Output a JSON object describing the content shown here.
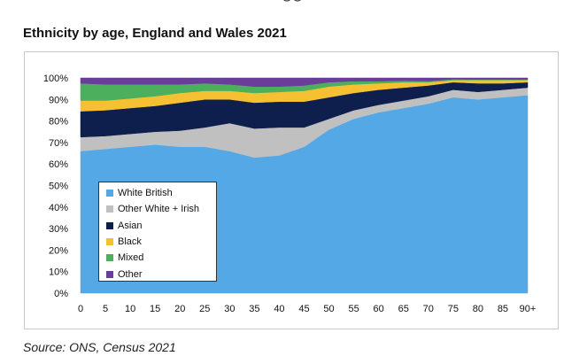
{
  "title": "Ethnicity by age, England and Wales 2021",
  "source": "Source: ONS, Census 2021",
  "chart_data": {
    "type": "area",
    "stacked": true,
    "x": [
      0,
      5,
      10,
      15,
      20,
      25,
      30,
      35,
      40,
      45,
      50,
      55,
      60,
      65,
      70,
      75,
      80,
      85,
      90
    ],
    "x_tick_labels": [
      "0",
      "5",
      "10",
      "15",
      "20",
      "25",
      "30",
      "35",
      "40",
      "45",
      "50",
      "55",
      "60",
      "65",
      "70",
      "75",
      "80",
      "85",
      "90+"
    ],
    "y_tick_labels": [
      "0%",
      "10%",
      "20%",
      "30%",
      "40%",
      "50%",
      "60%",
      "70%",
      "80%",
      "90%",
      "100%"
    ],
    "ylim": [
      0,
      100
    ],
    "legend_position": "bottom-left",
    "series": [
      {
        "name": "White British",
        "color": "#55a8e6",
        "values": [
          66,
          67,
          68,
          69,
          68,
          68,
          66,
          63,
          64,
          68,
          76,
          81,
          84,
          86,
          88,
          91,
          90,
          91,
          92
        ]
      },
      {
        "name": "Other White + Irish",
        "color": "#c0c0c0",
        "values": [
          6.5,
          6,
          6,
          6,
          7.5,
          9,
          13,
          13.5,
          13,
          9,
          5,
          4,
          3.5,
          3.5,
          3.5,
          3.5,
          3.5,
          3.5,
          3.5
        ]
      },
      {
        "name": "Asian",
        "color": "#0e1f4d",
        "values": [
          12,
          12,
          12,
          12,
          13,
          13,
          11,
          12,
          12,
          12,
          10,
          8,
          7,
          6,
          5,
          3.5,
          4,
          3,
          2.5
        ]
      },
      {
        "name": "Black",
        "color": "#f5c133",
        "values": [
          5,
          4.5,
          4.5,
          4.5,
          4.5,
          4,
          4,
          4.5,
          4.5,
          5,
          5,
          4,
          3,
          2.5,
          1.5,
          1,
          1.5,
          1.5,
          1
        ]
      },
      {
        "name": "Mixed",
        "color": "#4caf5e",
        "values": [
          8,
          7.5,
          6.5,
          5.5,
          4,
          3.5,
          3,
          3,
          2.5,
          2.5,
          2,
          1.5,
          1,
          0.8,
          0.6,
          0.4,
          0.3,
          0.3,
          0.3
        ]
      },
      {
        "name": "Other",
        "color": "#6a3d9a",
        "values": [
          2.5,
          3,
          3,
          3,
          3,
          2.5,
          3,
          4,
          4,
          3.5,
          2,
          1.5,
          1.5,
          1.2,
          1.4,
          0.6,
          0.7,
          0.7,
          0.7
        ]
      }
    ]
  }
}
